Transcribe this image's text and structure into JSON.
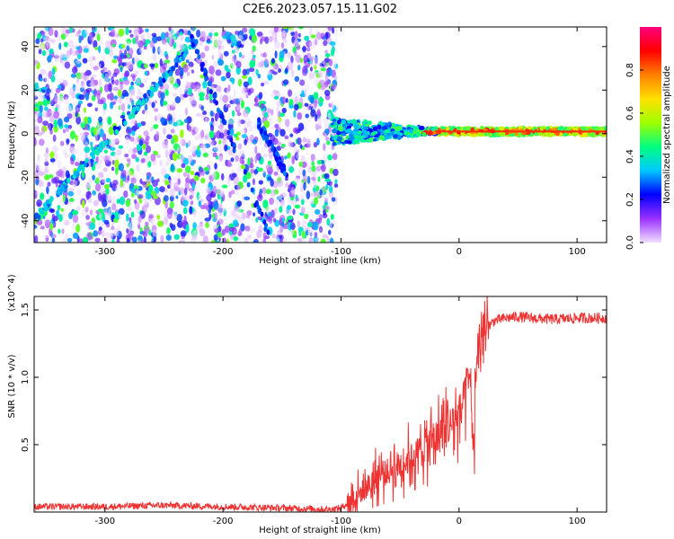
{
  "title": "C2E6.2023.057.15.11.G02",
  "chart_data": [
    {
      "type": "heatmap",
      "xlabel": "Height of straight line (km)",
      "ylabel": "Frequency (Hz)",
      "xlim": [
        -360,
        125
      ],
      "ylim": [
        -50,
        49
      ],
      "xticks": [
        -300,
        -200,
        -100,
        0,
        100
      ],
      "yticks": [
        -40,
        -20,
        0,
        20,
        40
      ],
      "colorbar": {
        "label": "Normalized spectral amplitude",
        "range": [
          0.0,
          1.0
        ],
        "ticks": [
          0.0,
          0.2,
          0.4,
          0.6,
          0.8
        ],
        "colors": [
          "#f0e0ff",
          "#9a30ff",
          "#0000ff",
          "#00c8ff",
          "#00ff80",
          "#a0ff00",
          "#ffe000",
          "#ff8000",
          "#ff0000",
          "#ff0080"
        ]
      },
      "features": {
        "noise_region_x": [
          -360,
          -108
        ],
        "carrier_line_x": [
          -108,
          125
        ],
        "carrier_frequency": 1,
        "diagonal_streak": {
          "x": [
            -358,
            -222
          ],
          "y": [
            -38,
            42
          ]
        }
      }
    },
    {
      "type": "line",
      "xlabel": "Height of straight line (km)",
      "ylabel": "SNR (10 * v/v)",
      "y_multiplier": "(x10^4)",
      "xlim": [
        -360,
        125
      ],
      "ylim": [
        0,
        1.6
      ],
      "xticks": [
        -300,
        -200,
        -100,
        0,
        100
      ],
      "yticks": [
        0.5,
        1.0,
        1.5
      ],
      "color": "#ee3333",
      "series": [
        {
          "x": [
            -360,
            -300,
            -250,
            -200,
            -150,
            -110,
            -100,
            -90,
            -80,
            -70,
            -60,
            -50,
            -40,
            -30,
            -20,
            -10,
            0,
            5,
            10,
            12,
            15,
            20,
            25,
            30,
            40,
            50,
            60,
            80,
            100,
            125
          ],
          "y": [
            0.04,
            0.04,
            0.05,
            0.04,
            0.03,
            0.02,
            0.03,
            0.1,
            0.17,
            0.26,
            0.3,
            0.36,
            0.4,
            0.48,
            0.55,
            0.62,
            0.72,
            0.85,
            1.0,
            0.35,
            1.2,
            1.3,
            1.38,
            1.42,
            1.44,
            1.45,
            1.44,
            1.43,
            1.44,
            1.44
          ]
        }
      ]
    }
  ]
}
